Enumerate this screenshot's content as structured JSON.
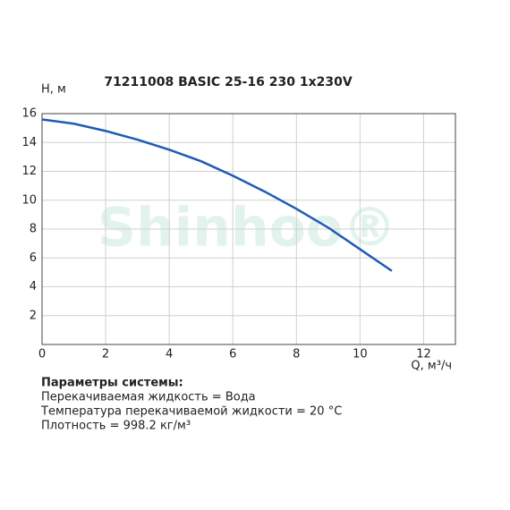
{
  "chart_data": {
    "type": "line",
    "title": "71211008 BASIC 25-16 230 1x230V",
    "ylabel": "H, м",
    "xlabel": "Q, м³/ч",
    "watermark": "Shinhoo®",
    "x": [
      0,
      1,
      2,
      3,
      4,
      5,
      6,
      7,
      8,
      9,
      10,
      11
    ],
    "series": [
      {
        "color": "#1f5bb5",
        "values": [
          15.6,
          15.3,
          14.8,
          14.2,
          13.5,
          12.7,
          11.7,
          10.6,
          9.4,
          8.1,
          6.6,
          5.1
        ]
      }
    ],
    "xlim": [
      0,
      13
    ],
    "ylim": [
      0,
      16
    ],
    "xticks": [
      0,
      2,
      4,
      6,
      8,
      10,
      12
    ],
    "yticks": [
      2,
      4,
      6,
      8,
      10,
      12,
      14,
      16
    ],
    "grid": true
  },
  "notes": {
    "heading": "Параметры системы:",
    "lines": [
      "Перекачиваемая жидкость = Вода",
      "Температура перекачиваемой жидкости = 20 °C",
      "Плотность = 998.2 кг/м³"
    ]
  }
}
